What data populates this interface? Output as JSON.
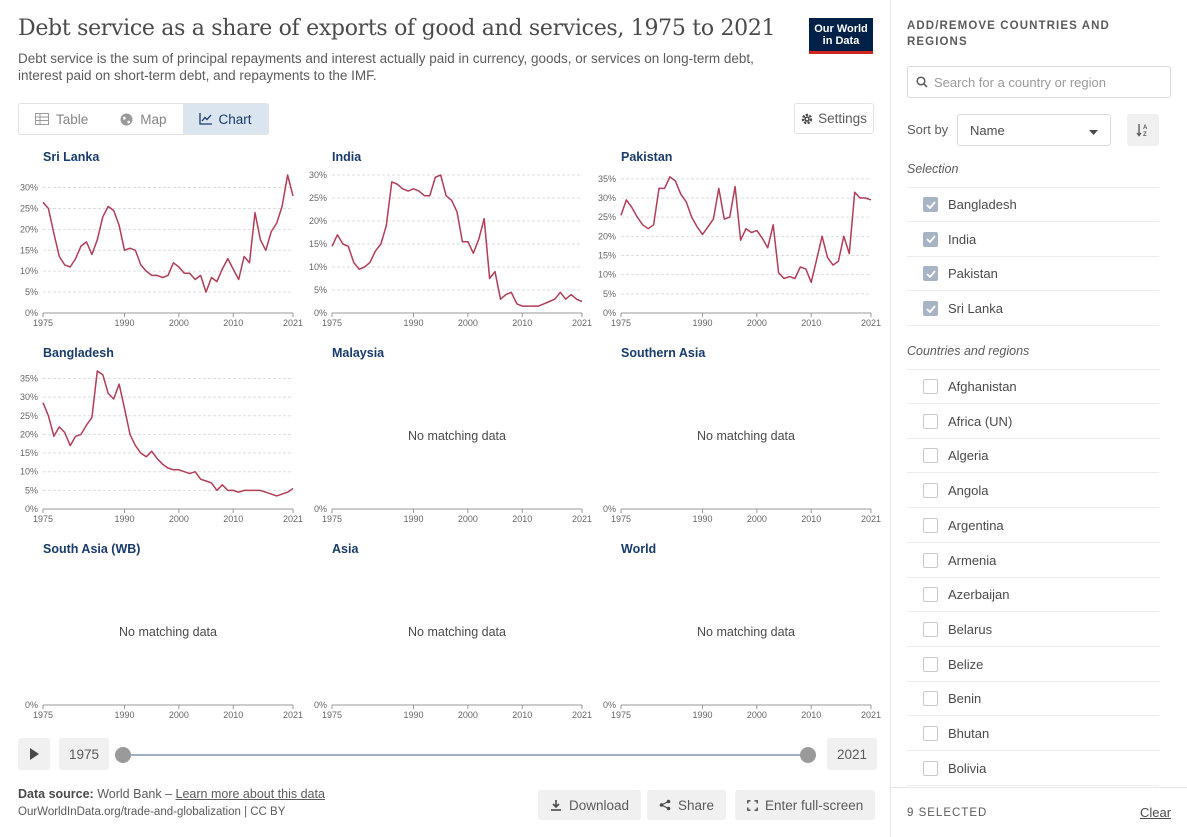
{
  "header": {
    "title": "Debt service as a share of exports of good and services, 1975 to 2021",
    "subtitle": "Debt service is the sum of principal repayments and interest actually paid in currency, goods, or services on long-term debt, interest paid on short-term debt, and repayments to the IMF.",
    "logo_line1": "Our World",
    "logo_line2": "in Data"
  },
  "tabs": [
    {
      "label": "Table",
      "icon": "table-icon"
    },
    {
      "label": "Map",
      "icon": "globe-icon"
    },
    {
      "label": "Chart",
      "icon": "line-chart-icon",
      "active": true
    }
  ],
  "settings_label": "Settings",
  "timeline": {
    "start": "1975",
    "end": "2021"
  },
  "footer": {
    "source_label": "Data source:",
    "source_text": "World Bank –",
    "learn_more": "Learn more about this data",
    "url": "OurWorldInData.org/trade-and-globalization | CC BY",
    "download": "Download",
    "share": "Share",
    "fullscreen": "Enter full-screen"
  },
  "sidebar": {
    "title": "ADD/REMOVE COUNTRIES AND REGIONS",
    "search_placeholder": "Search for a country or region",
    "sort_label": "Sort by",
    "sort_value": "Name",
    "selection_heading": "Selection",
    "selection": [
      "Bangladesh",
      "India",
      "Pakistan",
      "Sri Lanka"
    ],
    "countries_heading": "Countries and regions",
    "countries": [
      "Afghanistan",
      "Africa (UN)",
      "Algeria",
      "Angola",
      "Argentina",
      "Armenia",
      "Azerbaijan",
      "Belarus",
      "Belize",
      "Benin",
      "Bhutan",
      "Bolivia"
    ],
    "selected_count": "9 SELECTED",
    "clear_label": "Clear"
  },
  "colors": {
    "line": "#b13d56",
    "accent": "#183b6b"
  },
  "chart_data": [
    {
      "type": "line",
      "title": "Sri Lanka",
      "xticks": [
        1975,
        1990,
        2000,
        2010,
        2021
      ],
      "yticks": [
        0,
        5,
        10,
        15,
        20,
        25,
        30
      ],
      "ytick_labels": [
        "0%",
        "5%",
        "10%",
        "15%",
        "20%",
        "25%",
        "30%"
      ],
      "ylim": [
        0,
        33
      ],
      "xlim": [
        1975,
        2021
      ],
      "x": [
        1975,
        1976,
        1977,
        1978,
        1979,
        1980,
        1981,
        1982,
        1983,
        1984,
        1985,
        1986,
        1987,
        1988,
        1989,
        1990,
        1991,
        1992,
        1993,
        1994,
        1995,
        1996,
        1997,
        1998,
        1999,
        2000,
        2001,
        2002,
        2003,
        2004,
        2005,
        2006,
        2007,
        2008,
        2009,
        2010,
        2011,
        2012,
        2013,
        2014,
        2015,
        2016,
        2017,
        2018,
        2019,
        2020,
        2021
      ],
      "values": [
        26.5,
        25,
        19,
        13.5,
        11.5,
        11,
        13,
        16,
        17,
        14,
        17.5,
        23,
        25.5,
        24.5,
        21,
        15,
        15.5,
        15,
        11.5,
        10,
        9,
        9,
        8.5,
        9,
        12,
        11,
        9.5,
        9.5,
        8,
        9,
        5,
        8.5,
        7.5,
        10.5,
        13,
        10.5,
        8,
        13.5,
        12,
        24,
        17.5,
        15,
        19.5,
        21.5,
        25.5,
        33,
        28
      ]
    },
    {
      "type": "line",
      "title": "India",
      "xticks": [
        1975,
        1990,
        2000,
        2010,
        2021
      ],
      "yticks": [
        0,
        5,
        10,
        15,
        20,
        25,
        30
      ],
      "ytick_labels": [
        "0%",
        "5%",
        "10%",
        "15%",
        "20%",
        "25%",
        "30%"
      ],
      "ylim": [
        0,
        30
      ],
      "xlim": [
        1975,
        2021
      ],
      "x": [
        1975,
        1976,
        1977,
        1978,
        1979,
        1980,
        1981,
        1982,
        1983,
        1984,
        1985,
        1986,
        1987,
        1988,
        1989,
        1990,
        1991,
        1992,
        1993,
        1994,
        1995,
        1996,
        1997,
        1998,
        1999,
        2000,
        2001,
        2002,
        2003,
        2004,
        2005,
        2006,
        2007,
        2008,
        2009,
        2010,
        2011,
        2012,
        2013,
        2014,
        2015,
        2016,
        2017,
        2018,
        2019,
        2020,
        2021
      ],
      "values": [
        14.5,
        17,
        15,
        14.5,
        11,
        9.5,
        10,
        11,
        13.5,
        15,
        19,
        28.5,
        28,
        27,
        26.5,
        27,
        26.5,
        25.5,
        25.5,
        29.5,
        30,
        25.5,
        24.5,
        22,
        15.5,
        15.5,
        13,
        16,
        20.5,
        7.5,
        9,
        3,
        4,
        4.5,
        2,
        1.5,
        1.5,
        1.5,
        1.5,
        2,
        2.5,
        3,
        4.5,
        3,
        4,
        3,
        2.5
      ]
    },
    {
      "type": "line",
      "title": "Pakistan",
      "xticks": [
        1975,
        1990,
        2000,
        2010,
        2021
      ],
      "yticks": [
        0,
        5,
        10,
        15,
        20,
        25,
        30,
        35
      ],
      "ytick_labels": [
        "0%",
        "5%",
        "10%",
        "15%",
        "20%",
        "25%",
        "30%",
        "35%"
      ],
      "ylim": [
        0,
        36
      ],
      "xlim": [
        1975,
        2021
      ],
      "x": [
        1975,
        1976,
        1977,
        1978,
        1979,
        1980,
        1981,
        1982,
        1983,
        1984,
        1985,
        1986,
        1987,
        1988,
        1989,
        1990,
        1991,
        1992,
        1993,
        1994,
        1995,
        1996,
        1997,
        1998,
        1999,
        2000,
        2001,
        2002,
        2003,
        2004,
        2005,
        2006,
        2007,
        2008,
        2009,
        2010,
        2011,
        2012,
        2013,
        2014,
        2015,
        2016,
        2017,
        2018,
        2019,
        2020,
        2021
      ],
      "values": [
        25.5,
        29.5,
        27.5,
        25,
        23,
        22,
        23,
        32.5,
        32.5,
        35.5,
        34.5,
        31,
        29,
        25,
        22.5,
        20.5,
        22.5,
        24.5,
        32.5,
        24.5,
        25,
        33,
        19,
        22,
        21,
        21.5,
        19.5,
        17,
        23,
        10.5,
        9,
        9.5,
        9,
        12,
        11.5,
        8,
        14,
        20,
        14.5,
        12.5,
        13.5,
        20,
        15.5,
        31.5,
        30,
        30,
        29.5
      ]
    },
    {
      "type": "line",
      "title": "Bangladesh",
      "xticks": [
        1975,
        1990,
        2000,
        2010,
        2021
      ],
      "yticks": [
        0,
        5,
        10,
        15,
        20,
        25,
        30,
        35
      ],
      "ytick_labels": [
        "0%",
        "5%",
        "10%",
        "15%",
        "20%",
        "25%",
        "30%",
        "35%"
      ],
      "ylim": [
        0,
        37
      ],
      "xlim": [
        1975,
        2021
      ],
      "x": [
        1975,
        1976,
        1977,
        1978,
        1979,
        1980,
        1981,
        1982,
        1983,
        1984,
        1985,
        1986,
        1987,
        1988,
        1989,
        1990,
        1991,
        1992,
        1993,
        1994,
        1995,
        1996,
        1997,
        1998,
        1999,
        2000,
        2001,
        2002,
        2003,
        2004,
        2005,
        2006,
        2007,
        2008,
        2009,
        2010,
        2011,
        2012,
        2013,
        2014,
        2015,
        2016,
        2017,
        2018,
        2019,
        2020,
        2021
      ],
      "values": [
        28.5,
        25,
        19.5,
        22,
        20.5,
        17,
        19.5,
        20,
        22.5,
        24.5,
        37,
        36,
        31,
        29.5,
        33.5,
        27,
        20,
        17,
        15,
        14,
        15.5,
        13.5,
        12,
        11,
        10.5,
        10.5,
        10,
        9.5,
        10,
        8,
        7.5,
        7,
        5,
        6.5,
        5,
        5,
        4.5,
        5,
        5,
        5,
        5,
        4.5,
        4,
        3.5,
        4,
        4.5,
        5.5
      ]
    },
    {
      "type": "line",
      "title": "Malaysia",
      "xticks": [
        1975,
        1990,
        2000,
        2010,
        2021
      ],
      "yticks": [
        0
      ],
      "ytick_labels": [
        "0%"
      ],
      "ylim": [
        0,
        1
      ],
      "xlim": [
        1975,
        2021
      ],
      "x": [],
      "values": [],
      "empty_label": "No matching data"
    },
    {
      "type": "line",
      "title": "Southern Asia",
      "xticks": [
        1975,
        1990,
        2000,
        2010,
        2021
      ],
      "yticks": [
        0
      ],
      "ytick_labels": [
        "0%"
      ],
      "ylim": [
        0,
        1
      ],
      "xlim": [
        1975,
        2021
      ],
      "x": [],
      "values": [],
      "empty_label": "No matching data"
    },
    {
      "type": "line",
      "title": "South Asia (WB)",
      "xticks": [
        1975,
        1990,
        2000,
        2010,
        2021
      ],
      "yticks": [
        0
      ],
      "ytick_labels": [
        "0%"
      ],
      "ylim": [
        0,
        1
      ],
      "xlim": [
        1975,
        2021
      ],
      "x": [],
      "values": [],
      "empty_label": "No matching data"
    },
    {
      "type": "line",
      "title": "Asia",
      "xticks": [
        1975,
        1990,
        2000,
        2010,
        2021
      ],
      "yticks": [
        0
      ],
      "ytick_labels": [
        "0%"
      ],
      "ylim": [
        0,
        1
      ],
      "xlim": [
        1975,
        2021
      ],
      "x": [],
      "values": [],
      "empty_label": "No matching data"
    },
    {
      "type": "line",
      "title": "World",
      "xticks": [
        1975,
        1990,
        2000,
        2010,
        2021
      ],
      "yticks": [
        0
      ],
      "ytick_labels": [
        "0%"
      ],
      "ylim": [
        0,
        1
      ],
      "xlim": [
        1975,
        2021
      ],
      "x": [],
      "values": [],
      "empty_label": "No matching data"
    }
  ]
}
